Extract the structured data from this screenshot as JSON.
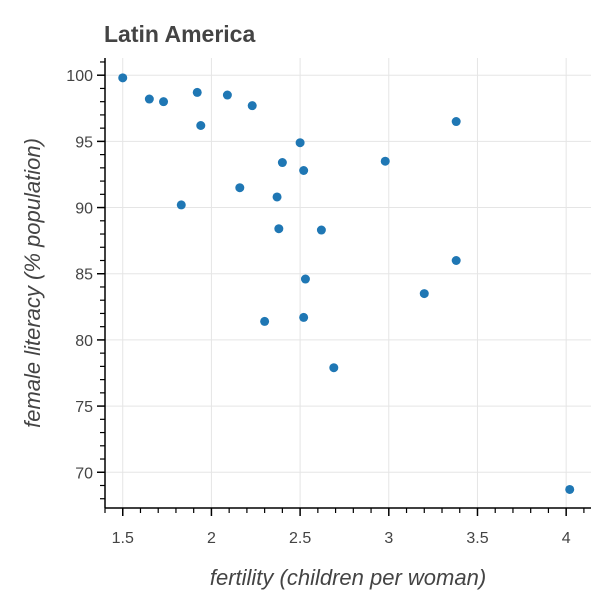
{
  "chart_data": {
    "type": "scatter",
    "title": "Latin America",
    "xlabel": "fertility (children per woman)",
    "ylabel": "female literacy (% population)",
    "xlim": [
      1.4,
      4.14
    ],
    "ylim": [
      67.3,
      101.3
    ],
    "x_ticks": [
      1.5,
      2,
      2.5,
      3,
      3.5,
      4
    ],
    "x_tick_labels": [
      "1.5",
      "2",
      "2.5",
      "3",
      "3.5",
      "4"
    ],
    "y_ticks": [
      70,
      75,
      80,
      85,
      90,
      95,
      100
    ],
    "y_tick_labels": [
      "70",
      "75",
      "80",
      "85",
      "90",
      "95",
      "100"
    ],
    "grid": true,
    "marker_color": "#1f77b4",
    "points": [
      {
        "x": 1.5,
        "y": 99.8
      },
      {
        "x": 1.65,
        "y": 98.2
      },
      {
        "x": 1.73,
        "y": 98.0
      },
      {
        "x": 1.92,
        "y": 98.7
      },
      {
        "x": 2.09,
        "y": 98.5
      },
      {
        "x": 2.23,
        "y": 97.7
      },
      {
        "x": 1.94,
        "y": 96.2
      },
      {
        "x": 3.38,
        "y": 96.5
      },
      {
        "x": 2.5,
        "y": 94.9
      },
      {
        "x": 2.4,
        "y": 93.4
      },
      {
        "x": 2.52,
        "y": 92.8
      },
      {
        "x": 2.98,
        "y": 93.5
      },
      {
        "x": 2.16,
        "y": 91.5
      },
      {
        "x": 2.37,
        "y": 90.8
      },
      {
        "x": 1.83,
        "y": 90.2
      },
      {
        "x": 2.38,
        "y": 88.4
      },
      {
        "x": 2.62,
        "y": 88.3
      },
      {
        "x": 3.38,
        "y": 86.0
      },
      {
        "x": 2.53,
        "y": 84.6
      },
      {
        "x": 3.2,
        "y": 83.5
      },
      {
        "x": 2.3,
        "y": 81.4
      },
      {
        "x": 2.52,
        "y": 81.7
      },
      {
        "x": 2.69,
        "y": 77.9
      },
      {
        "x": 4.02,
        "y": 68.7
      }
    ]
  }
}
